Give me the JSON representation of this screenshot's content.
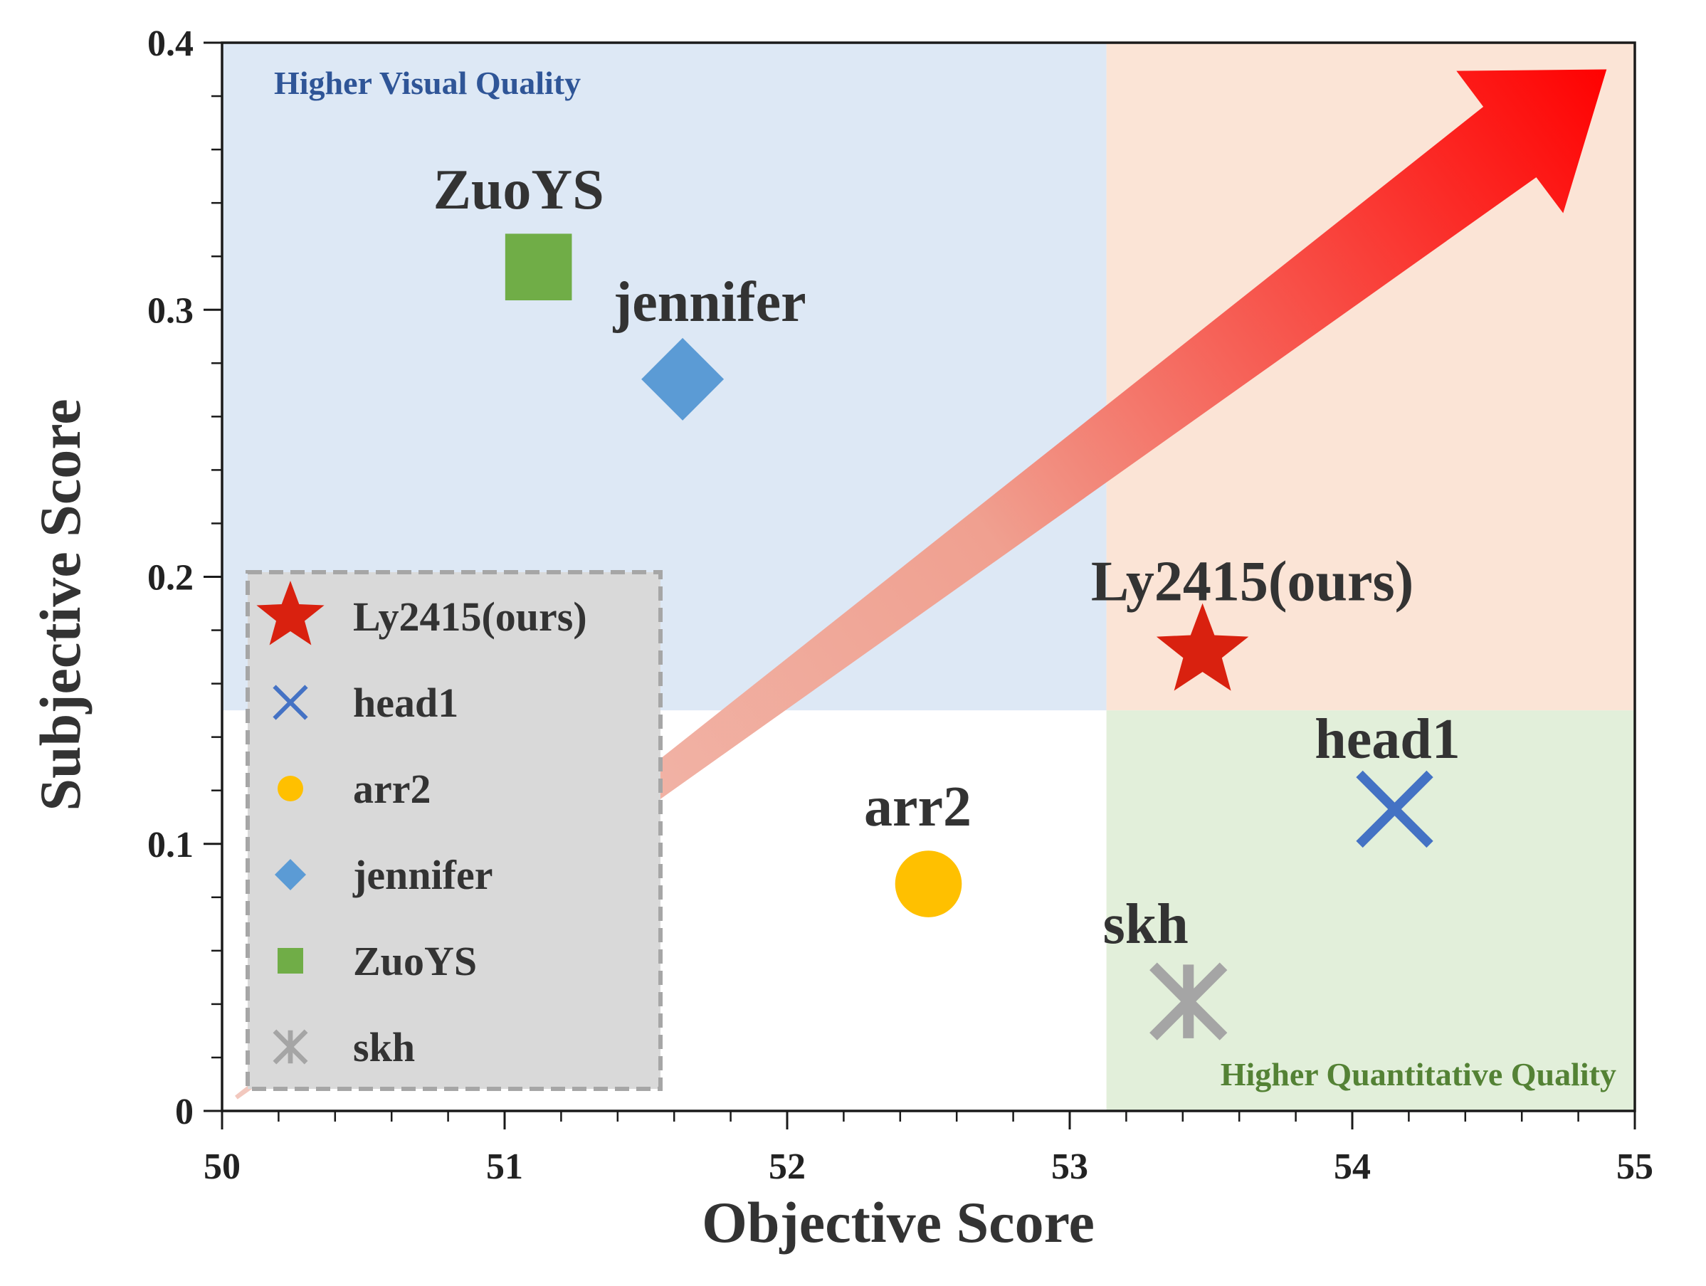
{
  "chart_data": {
    "type": "scatter",
    "xlabel": "Objective Score",
    "ylabel": "Subjective Score",
    "xlim": [
      50,
      55
    ],
    "ylim": [
      0,
      0.4
    ],
    "x_ticks": [
      "50",
      "51",
      "52",
      "53",
      "54",
      "55"
    ],
    "y_ticks": [
      "0",
      "0.1",
      "0.2",
      "0.3",
      "0.4"
    ],
    "grid": false,
    "legend_position": "bottom-left",
    "regions": [
      {
        "name": "higher-visual-quality",
        "label": "Higher Visual Quality",
        "x": [
          50,
          53.13
        ],
        "y": [
          0.15,
          0.4
        ],
        "color": "#dde8f5",
        "label_color": "#2f5597"
      },
      {
        "name": "best-quality",
        "label": "",
        "x": [
          53.13,
          55
        ],
        "y": [
          0.15,
          0.4
        ],
        "color": "#fbe4d6"
      },
      {
        "name": "higher-quantitative-quality",
        "label": "Higher Quantitative Quality",
        "x": [
          53.13,
          55
        ],
        "y": [
          0,
          0.15
        ],
        "color": "#e2efda",
        "label_color": "#548235"
      }
    ],
    "arrow": {
      "from": [
        50.05,
        0.005
      ],
      "to": [
        54.9,
        0.39
      ]
    },
    "series": [
      {
        "name": "Ly2415(ours)",
        "marker": "star",
        "color": "#d9210f",
        "x": 53.47,
        "y": 0.172,
        "label": "Ly2415(ours)"
      },
      {
        "name": "head1",
        "marker": "x",
        "color": "#4472c4",
        "x": 54.15,
        "y": 0.113,
        "label": "head1"
      },
      {
        "name": "arr2",
        "marker": "circle",
        "color": "#ffc000",
        "x": 52.5,
        "y": 0.085,
        "label": "arr2"
      },
      {
        "name": "jennifer",
        "marker": "diamond",
        "color": "#5b9bd5",
        "x": 51.63,
        "y": 0.274,
        "label": "jennifer"
      },
      {
        "name": "ZuoYS",
        "marker": "square",
        "color": "#70ad47",
        "x": 51.12,
        "y": 0.316,
        "label": "ZuoYS"
      },
      {
        "name": "skh",
        "marker": "asterisk",
        "color": "#a5a5a5",
        "x": 53.42,
        "y": 0.041,
        "label": "skh"
      }
    ]
  }
}
